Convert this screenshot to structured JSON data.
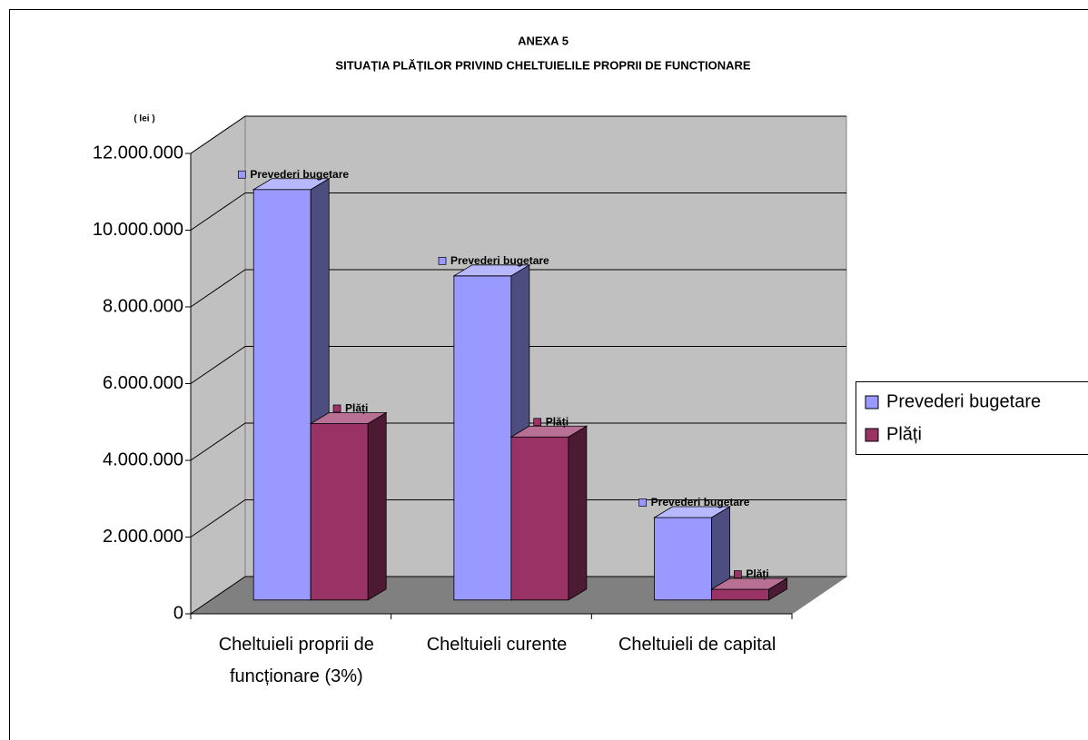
{
  "chart_data": {
    "type": "bar3d",
    "title": "ANEXA 5",
    "subtitle": "SITUAȚIA PLĂȚILOR PRIVIND CHELTUIELILE PROPRII DE FUNCȚIONARE",
    "y_unit": "( lei )",
    "categories": [
      "Cheltuieli proprii de funcționare (3%)",
      "Cheltuieli curente",
      "Cheltuieli de capital"
    ],
    "series": [
      {
        "name": "Prevederi bugetare",
        "color": "#9999ff",
        "values": [
          10700000,
          8450000,
          2150000
        ]
      },
      {
        "name": "Plăți",
        "color": "#993366",
        "values": [
          4600000,
          4250000,
          280000
        ]
      }
    ],
    "ylim": [
      0,
      12000000
    ],
    "yticks": [
      0,
      {
        "value": 2000000,
        "label": "2.000.000"
      },
      {
        "value": 4000000,
        "label": "4.000.000"
      },
      {
        "value": 6000000,
        "label": "6.000.000"
      },
      {
        "value": 8000000,
        "label": "8.000.000"
      },
      {
        "value": 10000000,
        "label": "10.000.000"
      },
      {
        "value": 12000000,
        "label": "12.000.000"
      }
    ],
    "grid": true,
    "legend": "right"
  }
}
